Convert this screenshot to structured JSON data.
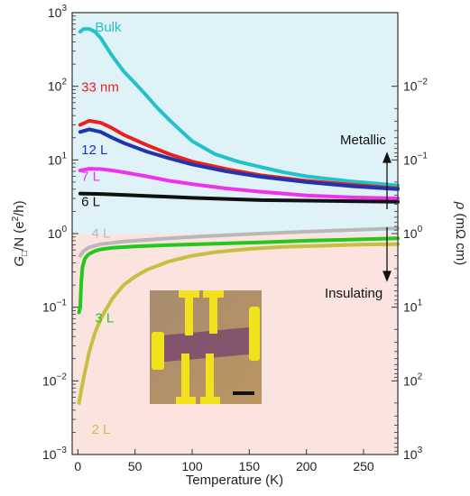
{
  "chart_data": {
    "type": "line",
    "xlabel": "Temperature (K)",
    "ylabel": "G□/N (e²/h)",
    "ylabel_parts": {
      "g": "G",
      "sub": "□",
      "rest": "/N (e",
      "sup": "2",
      "tail": "/h)"
    },
    "y2label": "ρ (mΩ cm)",
    "y2label_parts": {
      "rho": "ρ",
      "unit": "(mΩ cm)"
    },
    "xlim": [
      -5,
      280
    ],
    "ylim": [
      0.001,
      1000
    ],
    "yscale": "log",
    "x_ticks": [
      "0",
      "50",
      "100",
      "150",
      "200",
      "250"
    ],
    "y_ticks": [
      {
        "base": "10",
        "exp": "−3"
      },
      {
        "base": "10",
        "exp": "−2"
      },
      {
        "base": "10",
        "exp": "−1"
      },
      {
        "base": "10",
        "exp": "0"
      },
      {
        "base": "10",
        "exp": "1"
      },
      {
        "base": "10",
        "exp": "2"
      },
      {
        "base": "10",
        "exp": "3"
      }
    ],
    "y2_ticks": [
      {
        "base": "10",
        "exp": "−2"
      },
      {
        "base": "10",
        "exp": "−1"
      },
      {
        "base": "10",
        "exp": "0"
      },
      {
        "base": "10",
        "exp": "1"
      },
      {
        "base": "10",
        "exp": "2"
      },
      {
        "base": "10",
        "exp": "3"
      }
    ],
    "y2_tick_values": [
      0.01,
      0.1,
      1,
      10,
      100,
      1000
    ],
    "regions": [
      {
        "from": 1,
        "to": 1000,
        "color": "#dff2f8"
      },
      {
        "from": 0.001,
        "to": 1,
        "color": "#fbe4e0"
      }
    ],
    "annotations": {
      "metallic": "Metallic",
      "insulating": "Insulating"
    },
    "series": [
      {
        "name": "Bulk",
        "color": "#22c2c8",
        "label_x": 15,
        "label_y": 550,
        "x": [
          2,
          5,
          10,
          15,
          20,
          30,
          40,
          50,
          60,
          70,
          80,
          90,
          100,
          120,
          140,
          160,
          180,
          200,
          220,
          240,
          260,
          280
        ],
        "y": [
          550,
          600,
          600,
          550,
          450,
          260,
          160,
          110,
          75,
          50,
          35,
          25,
          18,
          12,
          9.5,
          8,
          6.8,
          6,
          5.5,
          5.1,
          4.8,
          4.5
        ]
      },
      {
        "name": "33 nm",
        "color": "#e8201e",
        "label_x": 3,
        "label_y": 85,
        "x": [
          2,
          10,
          20,
          30,
          40,
          60,
          80,
          100,
          130,
          160,
          200,
          240,
          280
        ],
        "y": [
          30,
          34,
          32,
          27,
          22,
          16,
          12,
          9.5,
          7.5,
          6.2,
          5.2,
          4.6,
          4.1
        ]
      },
      {
        "name": "12 L",
        "color": "#1f35b0",
        "label_x": 3,
        "label_y": 12,
        "x": [
          2,
          10,
          20,
          30,
          40,
          60,
          80,
          100,
          130,
          160,
          200,
          240,
          280
        ],
        "y": [
          24,
          26,
          24,
          20,
          17,
          13,
          10.5,
          8.7,
          7,
          5.9,
          5,
          4.4,
          4
        ]
      },
      {
        "name": "7 L",
        "color": "#ee33ee",
        "label_x": 3,
        "label_y": 5.2,
        "x": [
          2,
          10,
          20,
          30,
          40,
          60,
          80,
          100,
          130,
          160,
          200,
          240,
          280
        ],
        "y": [
          7.2,
          7.6,
          7.5,
          7.2,
          6.8,
          6,
          5.2,
          4.7,
          4.1,
          3.7,
          3.3,
          3.1,
          3
        ]
      },
      {
        "name": "6 L",
        "color": "#111111",
        "label_x": 3,
        "label_y": 2.35,
        "x": [
          2,
          20,
          40,
          60,
          80,
          100,
          130,
          160,
          200,
          240,
          280
        ],
        "y": [
          3.5,
          3.45,
          3.35,
          3.25,
          3.15,
          3.05,
          2.95,
          2.85,
          2.8,
          2.75,
          2.7
        ]
      },
      {
        "name": "4 L",
        "color": "#b8b8b8",
        "label_x": 12,
        "label_y": 0.88,
        "x": [
          2,
          5,
          10,
          20,
          40,
          60,
          80,
          100,
          130,
          160,
          200,
          240,
          280
        ],
        "y": [
          0.5,
          0.58,
          0.65,
          0.72,
          0.78,
          0.82,
          0.86,
          0.9,
          0.95,
          1.0,
          1.06,
          1.12,
          1.18
        ]
      },
      {
        "name": "3 L",
        "color": "#22c81a",
        "label_x": 15,
        "label_y": 0.062,
        "x": [
          1,
          2,
          3,
          4,
          6,
          8,
          10,
          15,
          20,
          30,
          50,
          80,
          120,
          160,
          200,
          240,
          280
        ],
        "y": [
          0.085,
          0.1,
          0.22,
          0.35,
          0.45,
          0.5,
          0.53,
          0.58,
          0.61,
          0.64,
          0.67,
          0.7,
          0.73,
          0.76,
          0.8,
          0.83,
          0.86
        ]
      },
      {
        "name": "2 L",
        "color": "#c6bf42",
        "label_x": 12,
        "label_y": 0.0019,
        "x": [
          1,
          3,
          5,
          8,
          10,
          15,
          20,
          30,
          40,
          50,
          60,
          80,
          100,
          120,
          150,
          180,
          220,
          250,
          280
        ],
        "y": [
          0.005,
          0.0075,
          0.011,
          0.018,
          0.025,
          0.045,
          0.07,
          0.13,
          0.2,
          0.26,
          0.32,
          0.42,
          0.5,
          0.56,
          0.62,
          0.66,
          0.69,
          0.71,
          0.72
        ]
      }
    ],
    "inset": {
      "content": "device micrograph with gold electrodes and scale bar"
    }
  }
}
